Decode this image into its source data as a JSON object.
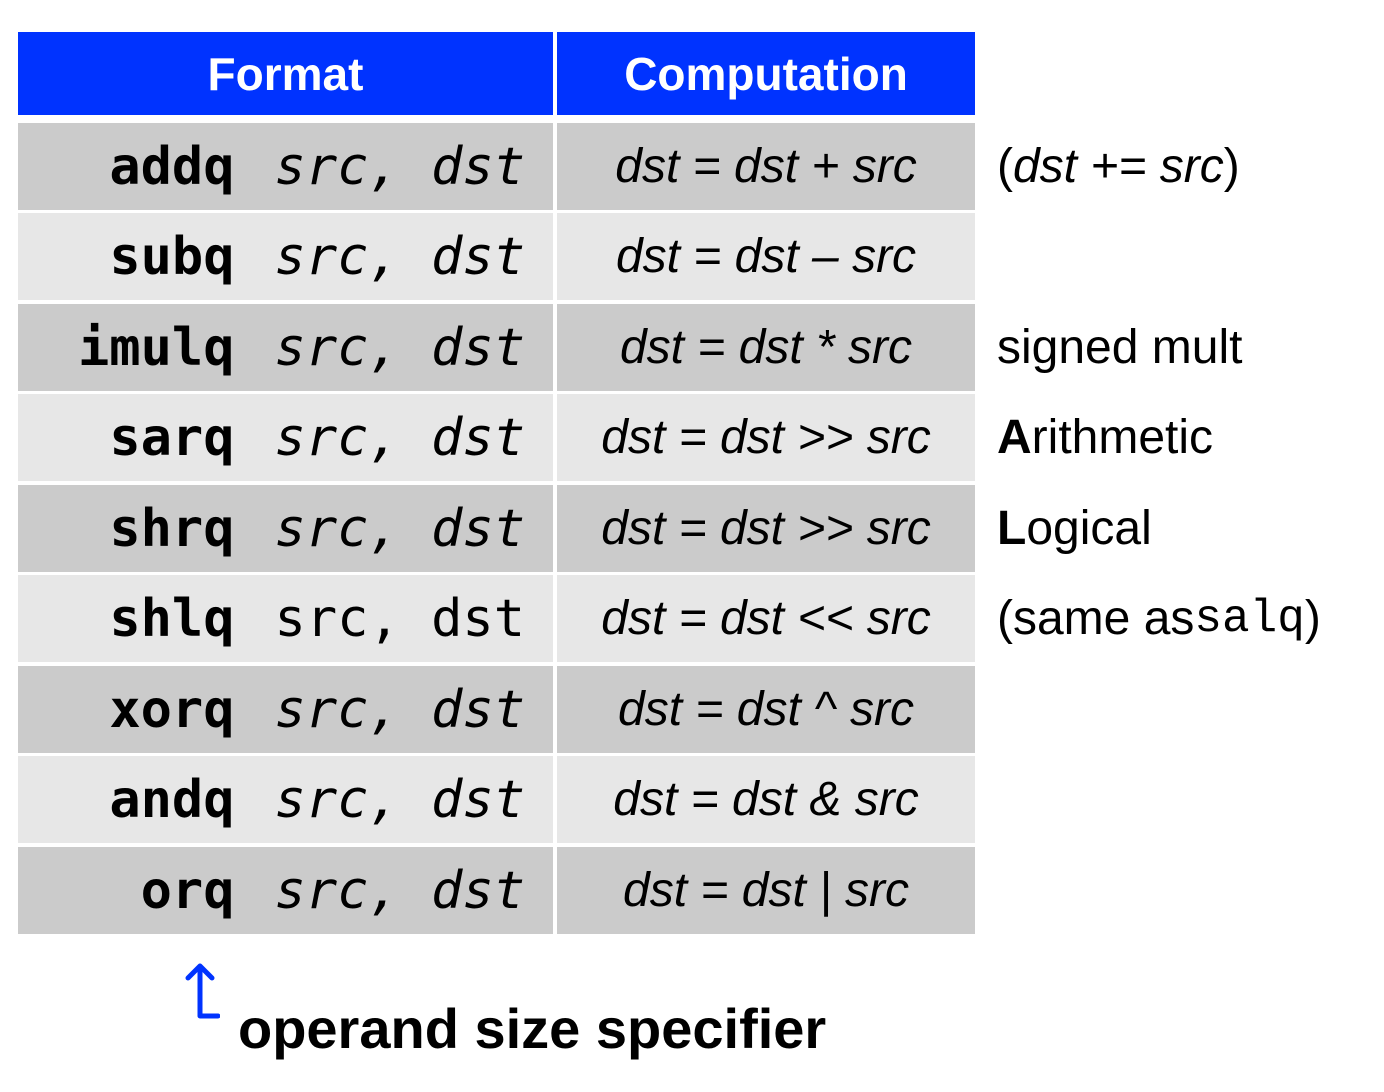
{
  "header": {
    "format": "Format",
    "computation": "Computation"
  },
  "rows": [
    {
      "op": "addq",
      "args": "src, dst",
      "computation": "dst = dst + src"
    },
    {
      "op": "subq",
      "args": "src, dst",
      "computation": "dst = dst – src"
    },
    {
      "op": "imulq",
      "args": "src, dst",
      "computation": "dst = dst * src"
    },
    {
      "op": "sarq",
      "args": "src, dst",
      "computation": "dst = dst >> src"
    },
    {
      "op": "shrq",
      "args": "src, dst",
      "computation": "dst = dst >> src"
    },
    {
      "op": "shlq",
      "args": "src, dst",
      "computation": "dst = dst << src"
    },
    {
      "op": "xorq",
      "args": "src, dst",
      "computation": "dst = dst ^ src"
    },
    {
      "op": "andq",
      "args": "src, dst",
      "computation": "dst = dst & src"
    },
    {
      "op": "orq",
      "args": "src, dst",
      "computation": "dst = dst | src"
    }
  ],
  "notes": {
    "addq": {
      "open": "(",
      "text": "dst += src",
      "close": ")"
    },
    "imulq": "signed mult",
    "sarq": {
      "bold": "A",
      "rest": "rithmetic"
    },
    "shrq": {
      "bold": "L",
      "rest": "ogical"
    },
    "shlq": {
      "prefix": "(same as ",
      "mono": "salq",
      "suffix": ")"
    }
  },
  "caption": "operand size specifier",
  "colors": {
    "header_bg": "#0033ff",
    "row_dark": "#cbcbcb",
    "row_light": "#e7e7e7",
    "arrow": "#0033ff"
  },
  "icons": {
    "arrow": "up-arrow-icon"
  }
}
